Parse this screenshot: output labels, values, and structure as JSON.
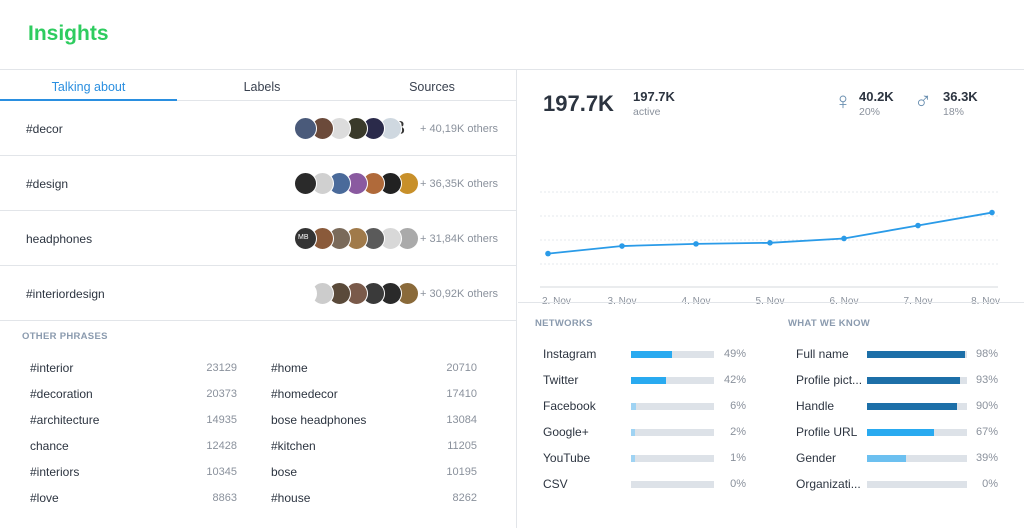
{
  "header": {
    "title": "Insights"
  },
  "tabs": [
    {
      "label": "Talking about",
      "active": true
    },
    {
      "label": "Labels",
      "active": false
    },
    {
      "label": "Sources",
      "active": false
    }
  ],
  "topics": [
    {
      "tag": "#decor",
      "others": "+ 40,19K others",
      "avatar_colors": [
        "#4a5a7a",
        "#6b4a3a",
        "#dcdcdc",
        "#3a3a2a",
        "#2a2a4a",
        "#cfd8e0"
      ],
      "avatar_letter": "B"
    },
    {
      "tag": "#design",
      "others": "+ 36,35K others",
      "avatar_colors": [
        "#2a2a2a",
        "#d0d0d0",
        "#4a6a9a",
        "#8a5aa0",
        "#b06a3a",
        "#222222",
        "#c8902a"
      ]
    },
    {
      "tag": "headphones",
      "others": "+ 31,84K others",
      "avatar_colors": [
        "#333333",
        "#8a5a3a",
        "#7a6a5a",
        "#a07a4a",
        "#5a5a5a",
        "#d8d8d8",
        "#aaaaaa"
      ],
      "avatar_letter": "MB"
    },
    {
      "tag": "#interiordesign",
      "others": "+ 30,92K others",
      "avatar_colors": [
        "#ffffff",
        "#cccccc",
        "#5a4a3a",
        "#7a5a4a",
        "#3a3a3a",
        "#2a2a2a",
        "#8a6a3a"
      ]
    }
  ],
  "other_phrases": {
    "title": "OTHER PHRASES",
    "items": [
      {
        "phrase": "#interior",
        "count": "23129"
      },
      {
        "phrase": "#home",
        "count": "20710"
      },
      {
        "phrase": "#decoration",
        "count": "20373"
      },
      {
        "phrase": "#homedecor",
        "count": "17410"
      },
      {
        "phrase": "#architecture",
        "count": "14935"
      },
      {
        "phrase": "bose headphones",
        "count": "13084"
      },
      {
        "phrase": "chance",
        "count": "12428"
      },
      {
        "phrase": "#kitchen",
        "count": "11205"
      },
      {
        "phrase": "#interiors",
        "count": "10345"
      },
      {
        "phrase": "bose",
        "count": "10195"
      },
      {
        "phrase": "#love",
        "count": "8863"
      },
      {
        "phrase": "#house",
        "count": "8262"
      }
    ]
  },
  "stats": {
    "total": "197.7K",
    "active_value": "197.7K",
    "active_label": "active",
    "female": {
      "icon": "female-icon",
      "value": "40.2K",
      "pct": "20%"
    },
    "male": {
      "icon": "male-icon",
      "value": "36.3K",
      "pct": "18%"
    }
  },
  "chart_data": {
    "type": "line",
    "categories": [
      "2. Nov",
      "3. Nov",
      "4. Nov",
      "5. Nov",
      "6. Nov",
      "7. Nov",
      "8. Nov"
    ],
    "values": [
      30,
      37,
      39,
      40,
      44,
      56,
      68
    ],
    "ylim": [
      0,
      100
    ],
    "grid": true,
    "color": "#2a9be8"
  },
  "networks": {
    "title": "NETWORKS",
    "items": [
      {
        "label": "Instagram",
        "pct": "49%",
        "value": 0.49
      },
      {
        "label": "Twitter",
        "pct": "42%",
        "value": 0.42
      },
      {
        "label": "Facebook",
        "pct": "6%",
        "value": 0.06
      },
      {
        "label": "Google+",
        "pct": "2%",
        "value": 0.02
      },
      {
        "label": "YouTube",
        "pct": "1%",
        "value": 0.01
      },
      {
        "label": "CSV",
        "pct": "0%",
        "value": 0.0
      }
    ],
    "colors": [
      "#29aaf0",
      "#29aaf0",
      "#9fd3f3",
      "#9fd3f3",
      "#9fd3f3",
      "#9fd3f3"
    ]
  },
  "what_we_know": {
    "title": "WHAT WE KNOW",
    "items": [
      {
        "label": "Full name",
        "pct": "98%",
        "value": 0.98
      },
      {
        "label": "Profile pict...",
        "pct": "93%",
        "value": 0.93
      },
      {
        "label": "Handle",
        "pct": "90%",
        "value": 0.9
      },
      {
        "label": "Profile URL",
        "pct": "67%",
        "value": 0.67
      },
      {
        "label": "Gender",
        "pct": "39%",
        "value": 0.39
      },
      {
        "label": "Organizati...",
        "pct": "0%",
        "value": 0.0
      }
    ],
    "colors": [
      "#1d6fa8",
      "#1d6fa8",
      "#1d6fa8",
      "#29aaf0",
      "#6cc0f0",
      "#6cc0f0"
    ]
  }
}
